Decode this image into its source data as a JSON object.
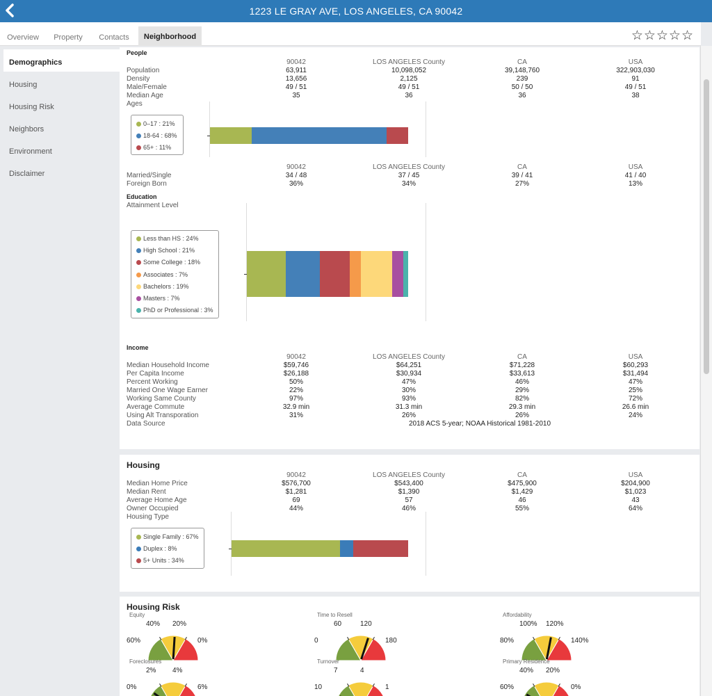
{
  "header": {
    "title": "1223 LE GRAY AVE, LOS ANGELES, CA 90042"
  },
  "tabs": [
    {
      "label": "Overview"
    },
    {
      "label": "Property"
    },
    {
      "label": "Contacts"
    },
    {
      "label": "Neighborhood"
    }
  ],
  "rating": {
    "stars": "☆☆☆☆☆",
    "value": 0,
    "max": 5
  },
  "sidebar": {
    "items": [
      {
        "label": "Demographics"
      },
      {
        "label": "Housing"
      },
      {
        "label": "Housing Risk"
      },
      {
        "label": "Neighbors"
      },
      {
        "label": "Environment"
      },
      {
        "label": "Disclaimer"
      }
    ]
  },
  "columns": [
    "90042",
    "LOS ANGELES County",
    "CA",
    "USA"
  ],
  "people": {
    "title": "People",
    "rows": [
      {
        "label": "Population",
        "values": [
          "63,911",
          "10,098,052",
          "39,148,760",
          "322,903,030"
        ]
      },
      {
        "label": "Density",
        "values": [
          "13,656",
          "2,125",
          "239",
          "91"
        ]
      },
      {
        "label": "Male/Female",
        "values": [
          "49 / 51",
          "49 / 51",
          "50 / 50",
          "49 / 51"
        ]
      },
      {
        "label": "Median Age",
        "values": [
          "35",
          "36",
          "36",
          "38"
        ]
      }
    ],
    "ages_label": "Ages",
    "ages": [
      {
        "label": "0–17 : 21%",
        "pct": 21,
        "color": "#a8b752"
      },
      {
        "label": "18-64 : 68%",
        "pct": 68,
        "color": "#4480b8"
      },
      {
        "label": "65+ : 11%",
        "pct": 11,
        "color": "#b94a4e"
      }
    ],
    "rows2": [
      {
        "label": "Married/Single",
        "values": [
          "34 / 48",
          "37 / 45",
          "39 / 41",
          "41 / 40"
        ]
      },
      {
        "label": "Foreign Born",
        "values": [
          "36%",
          "34%",
          "27%",
          "13%"
        ]
      }
    ]
  },
  "education": {
    "title": "Education",
    "subtitle": "Attainment Level",
    "levels": [
      {
        "label": "Less than HS : 24%",
        "pct": 24,
        "color": "#a8b752"
      },
      {
        "label": "High School : 21%",
        "pct": 21,
        "color": "#4480b8"
      },
      {
        "label": "Some College : 18%",
        "pct": 18,
        "color": "#b94a4e"
      },
      {
        "label": "Associates : 7%",
        "pct": 7,
        "color": "#f59a4a"
      },
      {
        "label": "Bachelors : 19%",
        "pct": 19,
        "color": "#fdd87a"
      },
      {
        "label": "Masters : 7%",
        "pct": 7,
        "color": "#a84fa0"
      },
      {
        "label": "PhD or Professional : 3%",
        "pct": 3,
        "color": "#4bb3ac"
      }
    ]
  },
  "income": {
    "title": "Income",
    "rows": [
      {
        "label": "Median Household Income",
        "values": [
          "$59,746",
          "$64,251",
          "$71,228",
          "$60,293"
        ]
      },
      {
        "label": "Per Capita Income",
        "values": [
          "$26,188",
          "$30,934",
          "$33,613",
          "$31,494"
        ]
      },
      {
        "label": "Percent Working",
        "values": [
          "50%",
          "47%",
          "46%",
          "47%"
        ]
      },
      {
        "label": "Married One Wage Earner",
        "values": [
          "22%",
          "30%",
          "29%",
          "25%"
        ]
      },
      {
        "label": "Working Same County",
        "values": [
          "97%",
          "93%",
          "82%",
          "72%"
        ]
      },
      {
        "label": "Average Commute",
        "values": [
          "32.9 min",
          "31.3 min",
          "29.3 min",
          "26.6 min"
        ]
      },
      {
        "label": "Using Alt Transporation",
        "values": [
          "31%",
          "26%",
          "26%",
          "24%"
        ]
      }
    ],
    "source_label": "Data Source",
    "source_value": "2018 ACS 5-year; NOAA Historical 1981-2010"
  },
  "housing": {
    "title": "Housing",
    "rows": [
      {
        "label": "Median Home Price",
        "values": [
          "$576,700",
          "$543,400",
          "$475,900",
          "$204,900"
        ]
      },
      {
        "label": "Median Rent",
        "values": [
          "$1,281",
          "$1,390",
          "$1,429",
          "$1,023"
        ]
      },
      {
        "label": "Average Home Age",
        "values": [
          "69",
          "57",
          "46",
          "43"
        ]
      },
      {
        "label": "Owner Occupied",
        "values": [
          "44%",
          "46%",
          "55%",
          "64%"
        ]
      }
    ],
    "type_label": "Housing Type",
    "types": [
      {
        "label": "Single Family : 67%",
        "pct": 67,
        "color": "#a8b752"
      },
      {
        "label": "Duplex : 8%",
        "pct": 8,
        "color": "#3b7cb8"
      },
      {
        "label": "5+ Units : 34%",
        "pct": 34,
        "color": "#b94a4e"
      }
    ]
  },
  "housing_risk": {
    "title": "Housing Risk",
    "gauges": [
      {
        "name": "Equity",
        "ticks": [
          "60%",
          "40%",
          "20%",
          "0%"
        ],
        "needle": 0.52
      },
      {
        "name": "Time to Resell",
        "ticks": [
          "0",
          "60",
          "120",
          "180"
        ],
        "needle": 0.6
      },
      {
        "name": "Affordability",
        "ticks": [
          "80%",
          "100%",
          "120%",
          "140%"
        ],
        "needle": 0.56
      },
      {
        "name": "Foreclosures",
        "ticks": [
          "0%",
          "2%",
          "4%",
          "6%"
        ],
        "needle": 0.2
      },
      {
        "name": "Turnover",
        "ticks": [
          "10",
          "7",
          "4",
          "1"
        ],
        "needle": 0.15
      },
      {
        "name": "Primary Residence",
        "ticks": [
          "60%",
          "40%",
          "20%",
          "0%"
        ],
        "needle": 0.18
      }
    ],
    "colors": {
      "green": "#79a040",
      "yellow": "#f5cc3c",
      "red": "#e8393c"
    }
  },
  "colors": {
    "accent": "#2e7ab8"
  }
}
